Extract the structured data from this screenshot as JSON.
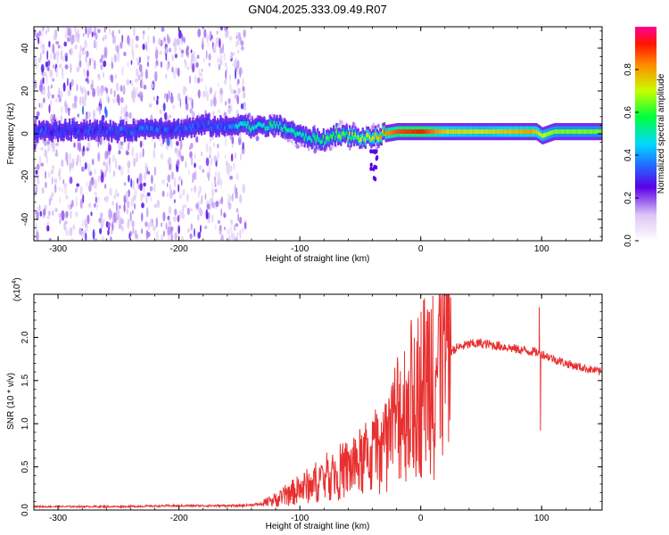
{
  "title": "GN04.2025.333.09.49.R07",
  "chart_data": [
    {
      "type": "heatmap",
      "xlabel": "Height of straight line (km)",
      "ylabel": "Frequency (Hz)",
      "xlim": [
        -320,
        150
      ],
      "ylim": [
        -50,
        50
      ],
      "xticks": [
        -300,
        -200,
        -100,
        0,
        100
      ],
      "yticks": [
        -40,
        -20,
        0,
        20,
        40
      ],
      "colorbar": {
        "label": "Normalized spectral amplitude",
        "range": [
          0,
          1
        ],
        "ticks": [
          "0.0",
          "0.2",
          "0.4",
          "0.6",
          "0.8"
        ]
      },
      "ridge": {
        "x": [
          -320,
          -280,
          -250,
          -220,
          -200,
          -180,
          -160,
          -150,
          -140,
          -120,
          -110,
          -100,
          -90,
          -80,
          -70,
          -60,
          -50,
          -40,
          -30,
          -20,
          -10,
          0,
          20,
          50,
          90,
          95,
          100,
          110,
          150
        ],
        "freq": [
          1,
          2,
          1,
          3,
          2,
          4,
          3,
          5,
          3,
          4,
          2,
          -1,
          -2,
          -3,
          0,
          -1,
          -2,
          -2,
          0,
          1,
          1,
          1,
          1,
          1,
          1,
          1,
          -1,
          1,
          1
        ],
        "amplitude": [
          0.28,
          0.28,
          0.3,
          0.3,
          0.28,
          0.3,
          0.3,
          0.45,
          0.48,
          0.5,
          0.5,
          0.48,
          0.5,
          0.55,
          0.6,
          0.6,
          0.62,
          0.7,
          0.8,
          0.88,
          0.9,
          0.92,
          0.75,
          0.72,
          0.8,
          0.75,
          0.7,
          0.65,
          0.65
        ]
      }
    },
    {
      "type": "line",
      "xlabel": "Height of straight line (km)",
      "ylabel": "SNR (10 * v/v)",
      "scale_label": "(x10",
      "scale_exp": "4",
      "xlim": [
        -320,
        150
      ],
      "ylim": [
        0,
        25000
      ],
      "xticks": [
        -300,
        -200,
        -100,
        0,
        100
      ],
      "yticks": [
        0,
        5000,
        10000,
        15000,
        20000
      ],
      "yticklabels": [
        "0.0",
        "0.5",
        "1.0",
        "1.5",
        "2.0"
      ],
      "color": "#e83030",
      "x": [
        -320,
        -250,
        -200,
        -150,
        -130,
        -120,
        -100,
        -80,
        -60,
        -50,
        -40,
        -30,
        -25,
        -20,
        -10,
        0,
        5,
        10,
        15,
        20,
        30,
        40,
        50,
        60,
        70,
        80,
        90,
        95,
        100,
        110,
        120,
        130,
        150
      ],
      "y": [
        400,
        400,
        500,
        500,
        700,
        1200,
        2400,
        3700,
        4800,
        5500,
        6500,
        7500,
        8500,
        11000,
        12500,
        14000,
        15500,
        17000,
        16500,
        18000,
        18800,
        19200,
        19300,
        19100,
        18900,
        18600,
        18400,
        18300,
        18100,
        17500,
        17000,
        16600,
        16000
      ],
      "spikes": [
        {
          "x": 10,
          "y": 24800
        },
        {
          "x": 11,
          "y": 3500
        },
        {
          "x": 98,
          "y": 23500
        },
        {
          "x": 99,
          "y": 9200
        }
      ]
    }
  ]
}
